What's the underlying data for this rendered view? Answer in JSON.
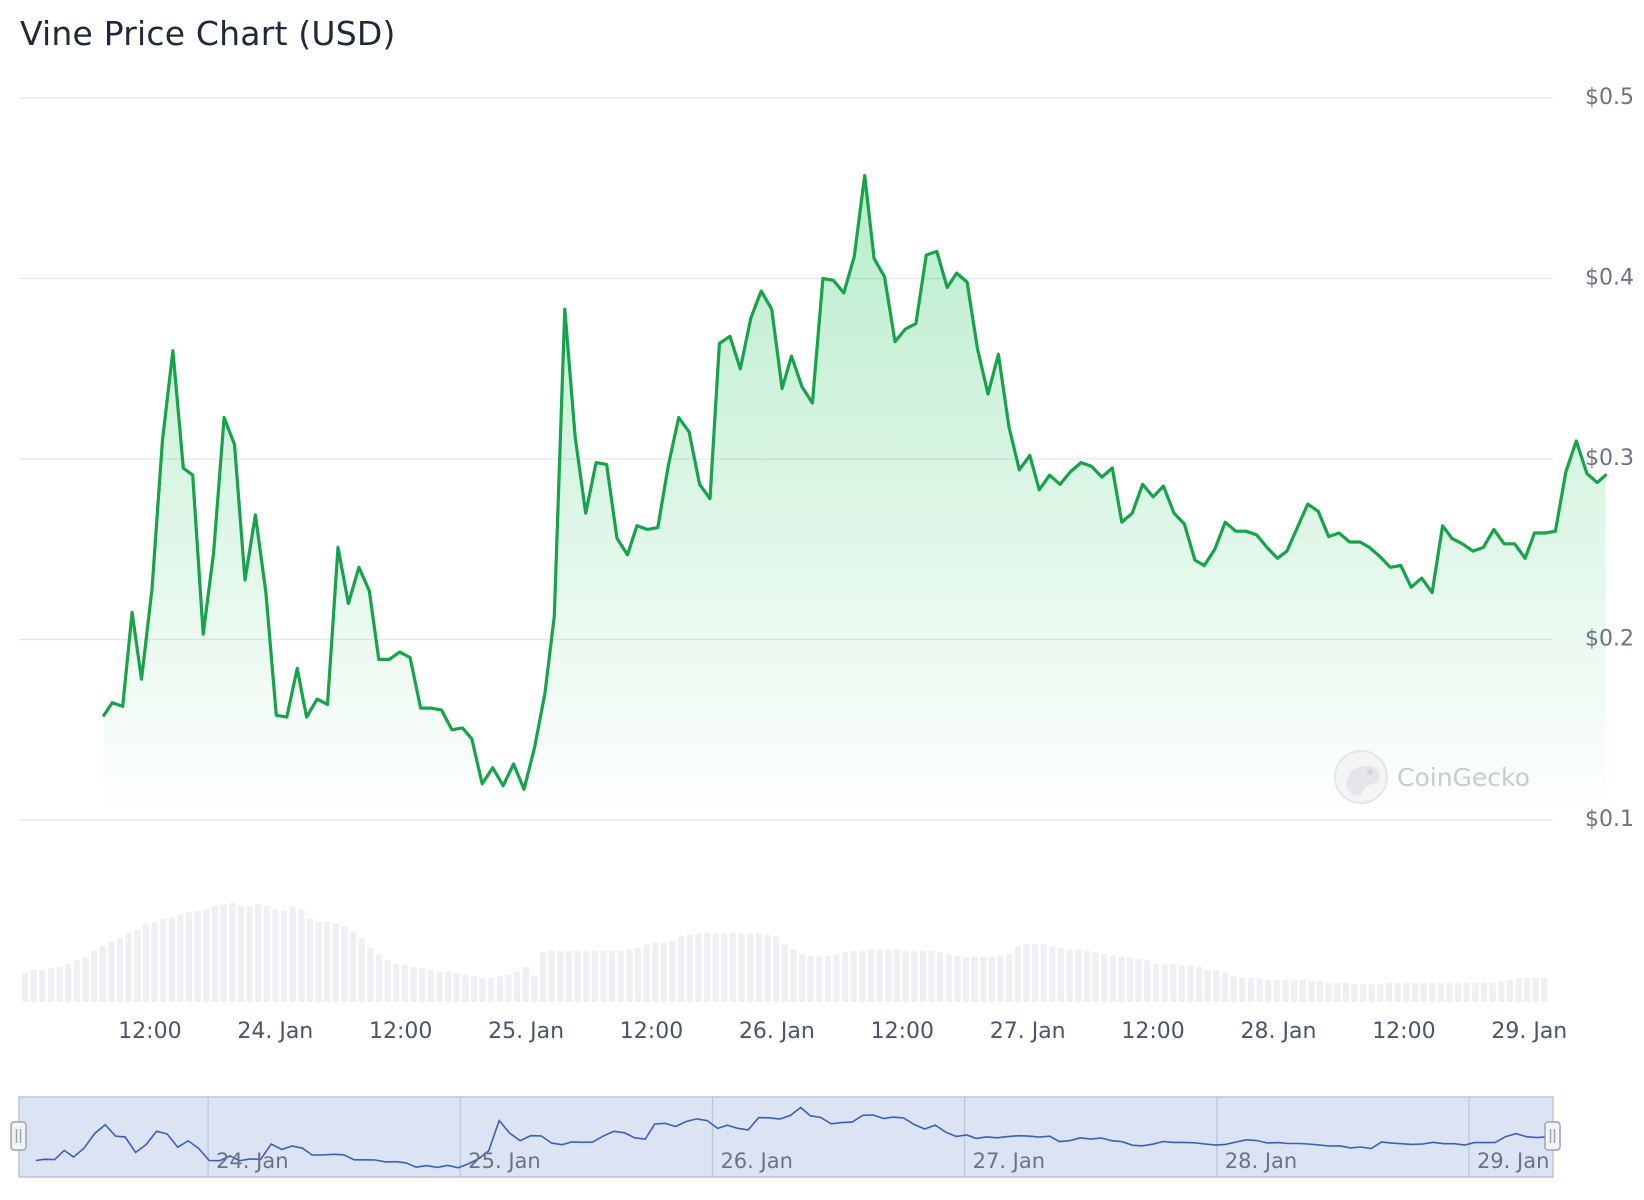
{
  "title": "Vine Price Chart (USD)",
  "watermark": "CoinGecko",
  "colors": {
    "line": "#16a34a",
    "fill": "#22c55e",
    "grid": "#e5e7eb",
    "volume": "#eef0f3",
    "navigator_bg": "#dce3f2",
    "navigator_line": "#3b5fc0"
  },
  "chart_data": {
    "type": "area",
    "title": "Vine Price Chart (USD)",
    "xlabel": "",
    "ylabel": "",
    "x_range": [
      "23 Jan 06:00",
      "29 Jan 22:00"
    ],
    "ylim": [
      0.1,
      0.5
    ],
    "y_ticks": [
      {
        "value": 0.5,
        "label": "$0.5"
      },
      {
        "value": 0.4,
        "label": "$0.4"
      },
      {
        "value": 0.3,
        "label": "$0.3"
      },
      {
        "value": 0.2,
        "label": "$0.2"
      },
      {
        "value": 0.1,
        "label": "$0.1"
      }
    ],
    "x_ticks": [
      {
        "hour": 12,
        "label": "12:00"
      },
      {
        "hour": 24,
        "label": "24. Jan"
      },
      {
        "hour": 36,
        "label": "12:00"
      },
      {
        "hour": 48,
        "label": "25. Jan"
      },
      {
        "hour": 60,
        "label": "12:00"
      },
      {
        "hour": 72,
        "label": "26. Jan"
      },
      {
        "hour": 84,
        "label": "12:00"
      },
      {
        "hour": 96,
        "label": "27. Jan"
      },
      {
        "hour": 108,
        "label": "12:00"
      },
      {
        "hour": 120,
        "label": "28. Jan"
      },
      {
        "hour": 132,
        "label": "12:00"
      },
      {
        "hour": 144,
        "label": "29. Jan"
      }
    ],
    "grid": true,
    "legend": "none",
    "series": [
      {
        "hours": [
          7.6,
          8.4,
          9.4,
          10.3,
          11.2,
          12.2,
          13.2,
          14.2,
          15.2,
          16.1,
          17.1,
          18.1,
          19.1,
          20.1,
          21.1,
          22.1,
          23.1,
          24.1,
          25.1,
          26.1,
          27.0,
          28.0,
          29.0,
          30.0,
          31.0,
          32.0,
          33.0,
          33.9,
          34.9,
          35.9,
          36.9,
          37.9,
          38.9,
          39.9,
          40.9,
          41.9,
          42.8,
          43.8,
          44.8,
          45.8,
          46.8,
          47.8,
          48.8,
          49.8,
          50.7,
          51.7,
          52.7,
          53.7,
          54.7,
          55.7,
          56.7,
          57.7,
          58.6,
          59.6,
          60.6,
          61.6,
          62.6,
          63.6,
          64.6,
          65.6,
          66.5,
          67.5,
          68.5,
          69.5,
          70.5,
          71.5,
          72.5,
          73.4,
          74.4,
          75.4,
          76.4,
          77.4,
          78.4,
          79.4,
          80.4,
          81.3,
          82.3,
          83.3,
          84.3,
          85.3,
          86.3,
          87.3,
          88.3,
          89.2,
          90.2,
          91.2,
          92.2,
          93.2,
          94.2,
          95.2,
          96.2,
          97.1,
          98.1,
          99.1,
          100.1,
          101.1,
          102.1,
          103.1,
          104.1,
          105.0,
          106.0,
          107.0,
          108.0,
          109.0,
          110.0,
          111.0,
          112.0,
          112.9,
          113.9,
          114.9,
          115.9,
          116.9,
          117.9,
          118.9,
          119.9,
          120.8,
          121.8,
          122.8,
          123.8,
          124.8,
          125.8,
          126.8,
          127.8,
          128.7,
          129.7,
          130.7,
          131.7,
          132.7,
          133.7,
          134.7,
          135.7,
          136.6,
          137.6,
          138.6,
          139.6,
          140.6,
          141.6,
          142.6,
          143.6,
          144.5,
          145.5,
          146.5,
          147.5,
          148.5,
          149.5,
          150.5,
          151.3
        ],
        "values": [
          0.158,
          0.165,
          0.163,
          0.215,
          0.178,
          0.228,
          0.31,
          0.36,
          0.295,
          0.291,
          0.203,
          0.248,
          0.323,
          0.308,
          0.233,
          0.269,
          0.226,
          0.158,
          0.157,
          0.184,
          0.157,
          0.167,
          0.164,
          0.251,
          0.22,
          0.24,
          0.227,
          0.189,
          0.189,
          0.193,
          0.19,
          0.162,
          0.162,
          0.161,
          0.15,
          0.151,
          0.145,
          0.12,
          0.129,
          0.119,
          0.131,
          0.117,
          0.14,
          0.17,
          0.213,
          0.383,
          0.312,
          0.27,
          0.298,
          0.297,
          0.256,
          0.247,
          0.263,
          0.261,
          0.262,
          0.296,
          0.323,
          0.315,
          0.286,
          0.278,
          0.364,
          0.368,
          0.35,
          0.378,
          0.393,
          0.383,
          0.339,
          0.357,
          0.34,
          0.331,
          0.4,
          0.399,
          0.392,
          0.412,
          0.457,
          0.411,
          0.401,
          0.365,
          0.372,
          0.375,
          0.413,
          0.415,
          0.395,
          0.403,
          0.398,
          0.361,
          0.336,
          0.358,
          0.318,
          0.294,
          0.302,
          0.283,
          0.291,
          0.286,
          0.293,
          0.298,
          0.296,
          0.29,
          0.295,
          0.265,
          0.27,
          0.286,
          0.279,
          0.285,
          0.27,
          0.264,
          0.244,
          0.241,
          0.25,
          0.265,
          0.26,
          0.26,
          0.258,
          0.251,
          0.245,
          0.249,
          0.262,
          0.275,
          0.271,
          0.257,
          0.259,
          0.254,
          0.254,
          0.251,
          0.246,
          0.24,
          0.241,
          0.229,
          0.234,
          0.226,
          0.263,
          0.256,
          0.253,
          0.249,
          0.251,
          0.261,
          0.253,
          0.253,
          0.245,
          0.259,
          0.259,
          0.26,
          0.293,
          0.31,
          0.292,
          0.287,
          0.291
        ]
      }
    ],
    "volume_relative": [
      0.18,
      0.2,
      0.2,
      0.21,
      0.22,
      0.24,
      0.26,
      0.28,
      0.32,
      0.35,
      0.38,
      0.4,
      0.43,
      0.45,
      0.49,
      0.5,
      0.52,
      0.53,
      0.55,
      0.56,
      0.57,
      0.58,
      0.6,
      0.61,
      0.62,
      0.6,
      0.6,
      0.61,
      0.6,
      0.58,
      0.57,
      0.6,
      0.58,
      0.52,
      0.5,
      0.5,
      0.49,
      0.47,
      0.44,
      0.4,
      0.34,
      0.3,
      0.26,
      0.24,
      0.23,
      0.22,
      0.21,
      0.2,
      0.19,
      0.19,
      0.18,
      0.17,
      0.16,
      0.15,
      0.15,
      0.16,
      0.17,
      0.19,
      0.22,
      0.16,
      0.31,
      0.32,
      0.32,
      0.32,
      0.32,
      0.32,
      0.32,
      0.32,
      0.32,
      0.32,
      0.33,
      0.34,
      0.36,
      0.37,
      0.37,
      0.38,
      0.41,
      0.42,
      0.43,
      0.43,
      0.43,
      0.43,
      0.43,
      0.43,
      0.43,
      0.43,
      0.42,
      0.41,
      0.36,
      0.33,
      0.3,
      0.29,
      0.29,
      0.29,
      0.3,
      0.31,
      0.32,
      0.32,
      0.33,
      0.33,
      0.33,
      0.33,
      0.32,
      0.32,
      0.32,
      0.32,
      0.31,
      0.3,
      0.29,
      0.28,
      0.28,
      0.28,
      0.28,
      0.29,
      0.3,
      0.35,
      0.36,
      0.36,
      0.36,
      0.35,
      0.34,
      0.33,
      0.33,
      0.32,
      0.31,
      0.3,
      0.29,
      0.28,
      0.28,
      0.27,
      0.26,
      0.24,
      0.24,
      0.24,
      0.23,
      0.23,
      0.22,
      0.2,
      0.2,
      0.19,
      0.16,
      0.15,
      0.15,
      0.15,
      0.14,
      0.14,
      0.14,
      0.14,
      0.14,
      0.13,
      0.13,
      0.12,
      0.12,
      0.12,
      0.11,
      0.11,
      0.11,
      0.11,
      0.12,
      0.12,
      0.12,
      0.12,
      0.12,
      0.12,
      0.12,
      0.12,
      0.12,
      0.12,
      0.12,
      0.12,
      0.12,
      0.13,
      0.14,
      0.15,
      0.15,
      0.15,
      0.15
    ],
    "navigator": {
      "labels": [
        {
          "hour": 24,
          "label": "24. Jan"
        },
        {
          "hour": 48,
          "label": "25. Jan"
        },
        {
          "hour": 72,
          "label": "26. Jan"
        },
        {
          "hour": 96,
          "label": "27. Jan"
        },
        {
          "hour": 120,
          "label": "28. Jan"
        },
        {
          "hour": 144,
          "label": "29. Jan"
        }
      ]
    }
  }
}
